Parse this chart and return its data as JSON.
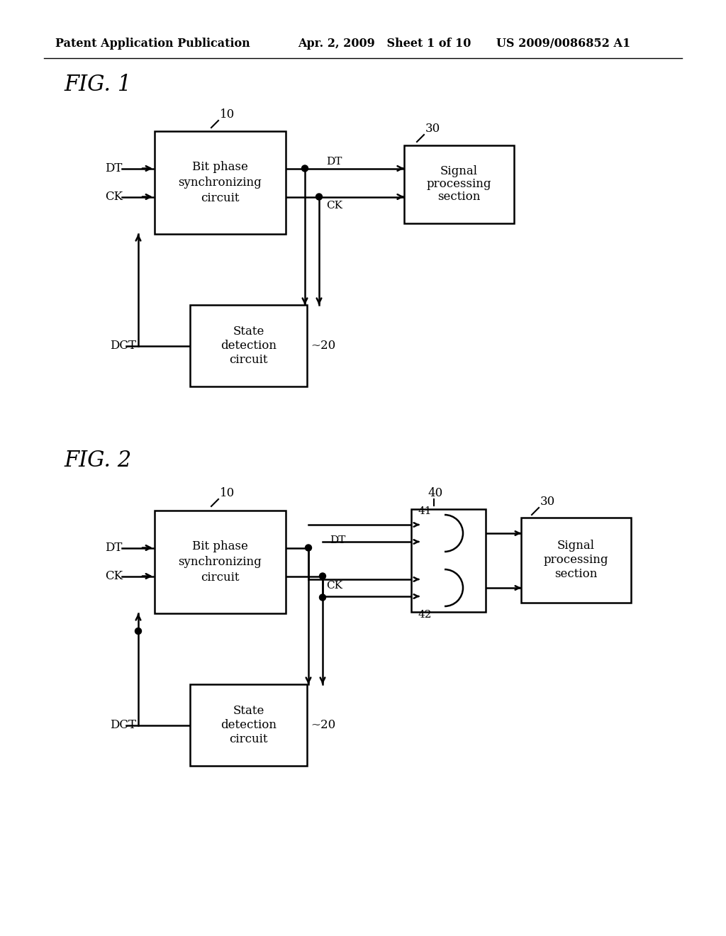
{
  "background_color": "#ffffff",
  "header_left": "Patent Application Publication",
  "header_mid": "Apr. 2, 2009   Sheet 1 of 10",
  "header_right": "US 2009/0086852 A1",
  "fig1_label": "FIG. 1",
  "fig2_label": "FIG. 2",
  "line_color": "#000000",
  "text_color": "#000000",
  "lw": 1.8
}
